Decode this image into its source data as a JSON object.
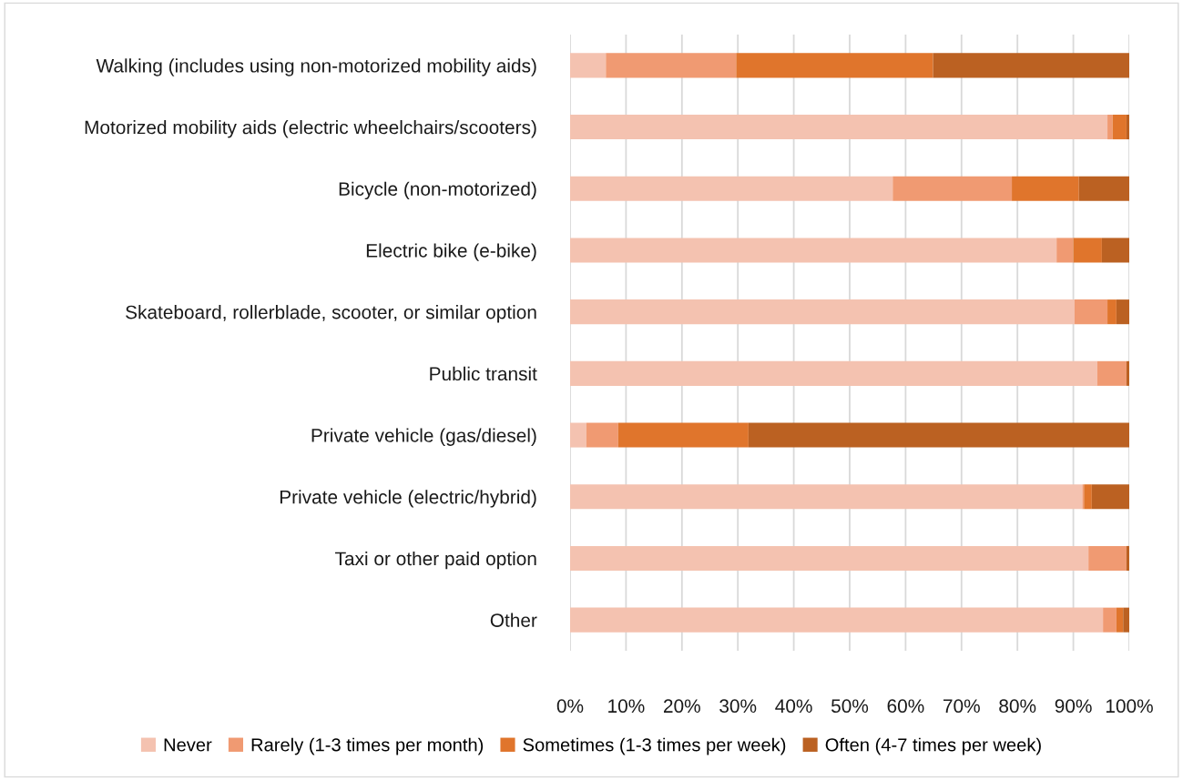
{
  "chart_data": {
    "type": "bar",
    "orientation": "horizontal",
    "stacked": true,
    "categories": [
      "Walking (includes using non-motorized mobility aids)",
      "Motorized mobility aids (electric wheelchairs/scooters)",
      "Bicycle (non-motorized)",
      "Electric bike (e-bike)",
      "Skateboard, rollerblade, scooter, or similar option",
      "Public transit",
      "Private vehicle (gas/diesel)",
      "Private vehicle (electric/hybrid)",
      "Taxi or other paid option",
      "Other"
    ],
    "series": [
      {
        "name": "Never",
        "color": "#f4c2b0",
        "values": [
          6.4,
          96.1,
          57.7,
          87.0,
          90.2,
          94.3,
          2.9,
          91.6,
          92.7,
          95.3
        ]
      },
      {
        "name": "Rarely (1-3 times per month)",
        "color": "#f09a72",
        "values": [
          23.3,
          0.9,
          21.3,
          3.0,
          5.9,
          5.2,
          5.7,
          0.3,
          6.8,
          2.4
        ]
      },
      {
        "name": "Sometimes (1-3 times per week)",
        "color": "#e0752c",
        "values": [
          35.2,
          2.5,
          12.0,
          5.1,
          1.6,
          0,
          23.3,
          1.4,
          0,
          1.2
        ]
      },
      {
        "name": "Often (4-7 times per week)",
        "color": "#bb6122",
        "values": [
          35.1,
          0.5,
          9.0,
          4.9,
          2.3,
          0.5,
          68.1,
          6.7,
          0.5,
          1.1
        ]
      }
    ],
    "xlim": [
      0,
      100
    ],
    "xticks": [
      {
        "value": 0,
        "label": "0%"
      },
      {
        "value": 10,
        "label": "10%"
      },
      {
        "value": 20,
        "label": "20%"
      },
      {
        "value": 30,
        "label": "30%"
      },
      {
        "value": 40,
        "label": "40%"
      },
      {
        "value": 50,
        "label": "50%"
      },
      {
        "value": 60,
        "label": "60%"
      },
      {
        "value": 70,
        "label": "70%"
      },
      {
        "value": 80,
        "label": "80%"
      },
      {
        "value": 90,
        "label": "90%"
      },
      {
        "value": 100,
        "label": "100%"
      }
    ],
    "grid": "x",
    "legend": "bottom"
  }
}
